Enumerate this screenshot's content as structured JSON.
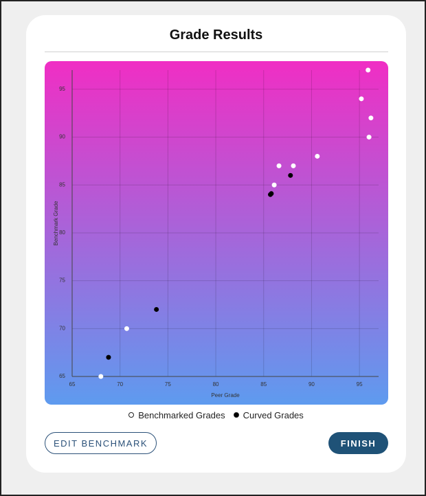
{
  "header": {
    "title": "Grade Results"
  },
  "chart_data": {
    "type": "scatter",
    "xlabel": "Peer Grade",
    "ylabel": "Benchmark Grade",
    "xlim": [
      65,
      97
    ],
    "ylim": [
      65,
      97
    ],
    "xticks": [
      65,
      70,
      75,
      80,
      85,
      90,
      95
    ],
    "yticks": [
      65,
      70,
      75,
      80,
      85,
      90,
      95
    ],
    "grid": true,
    "series": [
      {
        "name": "Benchmarked Grades",
        "color": "#ffffff",
        "x": [
          68.0,
          70.7,
          86.1,
          86.6,
          88.1,
          90.6,
          95.2,
          95.9,
          96.2,
          96.0
        ],
        "values": [
          65,
          70,
          85,
          87,
          87,
          88,
          94,
          97,
          92,
          90
        ]
      },
      {
        "name": "Curved Grades",
        "color": "#000000",
        "x": [
          68.8,
          73.8,
          85.7,
          85.8,
          87.8
        ],
        "values": [
          67,
          72,
          84,
          84.1,
          86
        ]
      }
    ]
  },
  "buttons": {
    "edit": "EDIT BENCHMARK",
    "finish": "FINISH"
  }
}
